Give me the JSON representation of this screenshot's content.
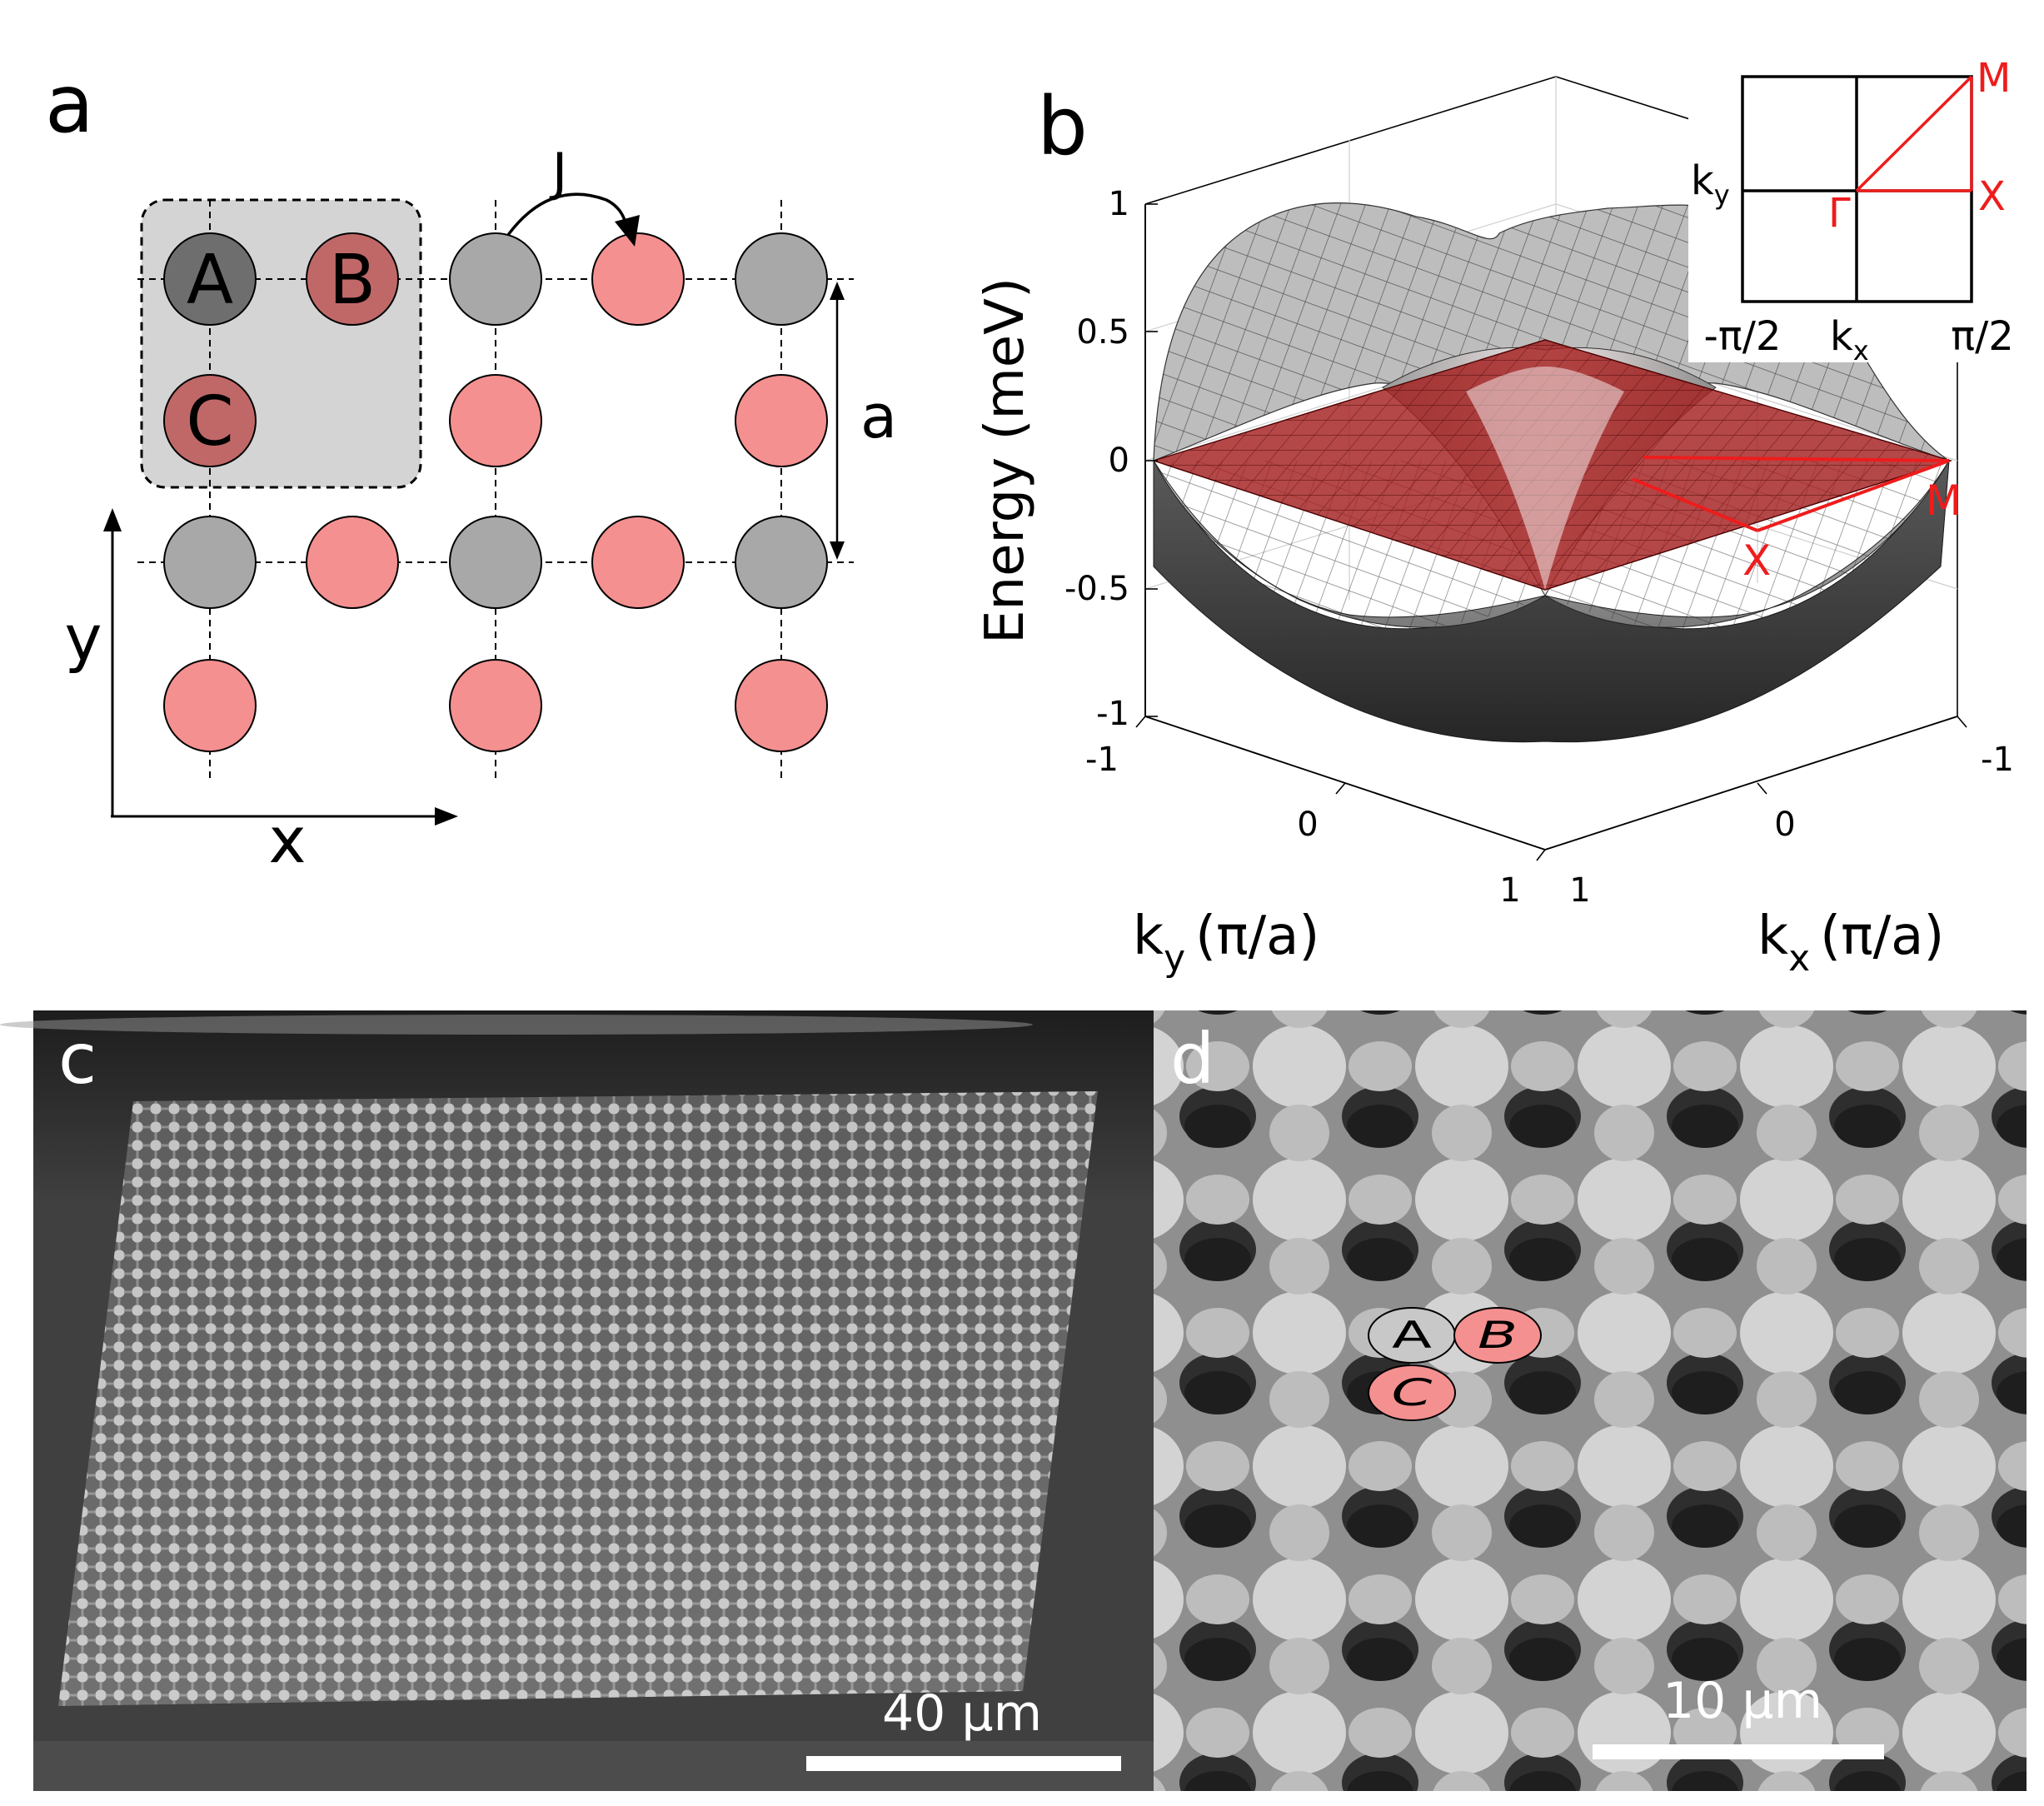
{
  "panels": {
    "a": {
      "label": "a",
      "site_a": "A",
      "site_b": "B",
      "site_c": "C",
      "hopping": "J",
      "lattice_constant": "a",
      "axis_x": "x",
      "axis_y": "y"
    },
    "b": {
      "label": "b",
      "zlabel": "Energy (meV)",
      "ztick_1": "1",
      "ztick_05": "0.5",
      "ztick_0": "0",
      "ztick_m05": "-0.5",
      "ztick_m1": "-1",
      "ky_tick_m1": "-1",
      "ky_tick_0": "0",
      "ky_tick_1": "1",
      "kx_tick_m1": "-1",
      "kx_tick_0": "0",
      "kx_tick_1": "1",
      "ky_label_k": "k",
      "ky_label_sub": "y",
      "ky_label_unit": "(π/a)",
      "kx_label_k": "k",
      "kx_label_sub": "x",
      "kx_label_unit": "(π/a)",
      "point_m": "M",
      "point_x": "X",
      "inset": {
        "ky_k": "k",
        "ky_sub": "y",
        "kx_k": "k",
        "kx_sub": "x",
        "tick_left": "-π/2",
        "tick_right": "π/2",
        "point_m": "M",
        "point_x": "X",
        "point_gamma": "Γ"
      }
    },
    "c": {
      "label": "c",
      "scalebar": "40 µm"
    },
    "d": {
      "label": "d",
      "scalebar": "10 µm",
      "site_a": "A",
      "site_b": "B",
      "site_c": "C"
    }
  },
  "colors": {
    "site_gray": "#a8a8a8",
    "site_pink": "#f59090",
    "site_dark": "#6e6e6e",
    "site_darkred": "#c06868",
    "flat_band": "#a31f1f",
    "highlight_red": "#ee1c1c",
    "unit_cell": "#d4d4d4"
  }
}
